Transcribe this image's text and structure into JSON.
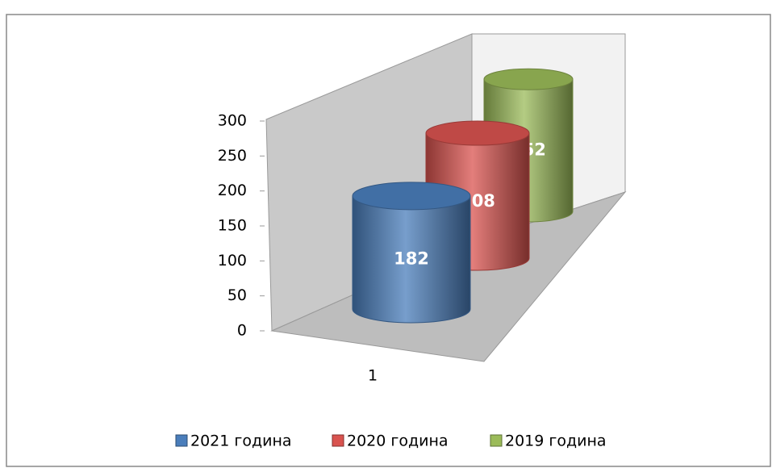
{
  "chart_data": {
    "type": "bar3d",
    "categories": [
      "1"
    ],
    "series": [
      {
        "name": "2021 година",
        "color": "#4a7ebb",
        "values": [
          182
        ]
      },
      {
        "name": "2020 година",
        "color": "#d9534f",
        "values": [
          208
        ]
      },
      {
        "name": "2019 година",
        "color": "#9bbb59",
        "values": [
          252
        ]
      }
    ],
    "ylim": [
      0,
      300
    ],
    "yticks": [
      0,
      50,
      100,
      150,
      200,
      250,
      300
    ],
    "legend": "bottom"
  }
}
